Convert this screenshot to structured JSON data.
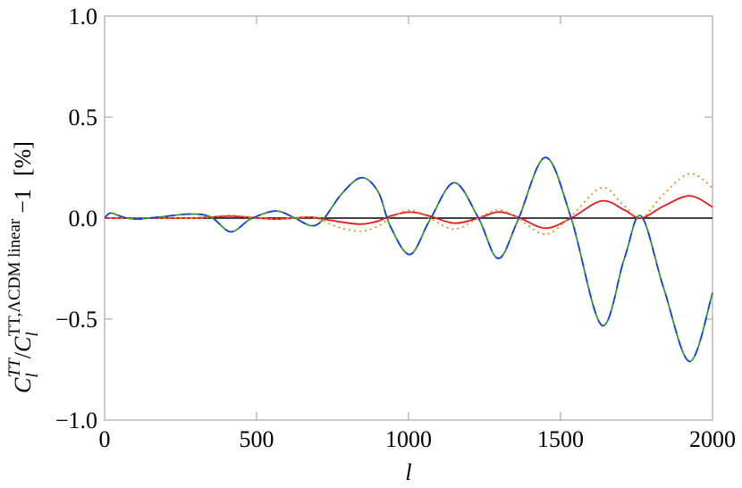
{
  "chart_data": {
    "type": "line",
    "xlabel": "l",
    "ylabel": [
      "C",
      "l",
      "TT",
      "/",
      "C",
      "l",
      "TT,ΛCDM linear",
      "−1",
      "[%]"
    ],
    "x": [
      0,
      20,
      60,
      100,
      180,
      280,
      350,
      415,
      480,
      560,
      620,
      680,
      720,
      780,
      845,
      900,
      940,
      1005,
      1070,
      1150,
      1230,
      1295,
      1360,
      1450,
      1535,
      1635,
      1710,
      1765,
      1840,
      1925,
      2000
    ],
    "series": [
      {
        "color": "#e41a1c",
        "dash": "none",
        "values": [
          0,
          0,
          0,
          0,
          0,
          0,
          0.005,
          0.01,
          0.003,
          -0.005,
          0,
          0.005,
          -0.005,
          -0.02,
          -0.03,
          -0.015,
          0.01,
          0.03,
          0.01,
          -0.025,
          0,
          0.03,
          0.005,
          -0.05,
          0,
          0.085,
          0.04,
          0,
          0.06,
          0.11,
          0.055
        ]
      },
      {
        "color": "#f08a24",
        "dash": "2 4",
        "values": [
          0,
          0,
          0,
          0,
          0,
          0,
          0.005,
          0.015,
          0.003,
          -0.005,
          0,
          0.005,
          -0.015,
          -0.05,
          -0.065,
          -0.04,
          0,
          0.04,
          0,
          -0.055,
          0,
          0.04,
          0,
          -0.08,
          0.01,
          0.15,
          0.06,
          0,
          0.12,
          0.22,
          0.15
        ]
      },
      {
        "color": "#2e9a2e",
        "dash": "none",
        "values": [
          0,
          0.025,
          0.005,
          -0.005,
          0.005,
          0.02,
          0.005,
          -0.068,
          -0.005,
          0.035,
          0.005,
          -0.038,
          -0.005,
          0.12,
          0.2,
          0.13,
          -0.04,
          -0.18,
          -0.01,
          0.175,
          0,
          -0.2,
          -0.01,
          0.3,
          0,
          -0.53,
          -0.2,
          0.01,
          -0.35,
          -0.71,
          -0.37
        ]
      },
      {
        "color": "#1f3fe0",
        "dash": "10 8",
        "values": [
          0,
          0.025,
          0.005,
          -0.005,
          0.005,
          0.02,
          0.005,
          -0.068,
          -0.005,
          0.035,
          0.005,
          -0.038,
          -0.005,
          0.12,
          0.2,
          0.13,
          -0.04,
          -0.18,
          -0.01,
          0.175,
          0,
          -0.2,
          -0.01,
          0.3,
          0,
          -0.53,
          -0.2,
          0.01,
          -0.35,
          -0.71,
          -0.37
        ]
      }
    ],
    "hline": 0,
    "hline_color": "#000000",
    "xlim": [
      0,
      2000
    ],
    "xticks": [
      0,
      500,
      1000,
      1500,
      2000
    ],
    "ylim": [
      -1,
      1
    ],
    "yticks": [
      {
        "value": -1,
        "label": "−1.0"
      },
      {
        "value": -0.5,
        "label": "−0.5"
      },
      {
        "value": 0,
        "label": "0.0"
      },
      {
        "value": 0.5,
        "label": "0.5"
      },
      {
        "value": 1,
        "label": "1.0"
      }
    ],
    "grid": false
  }
}
